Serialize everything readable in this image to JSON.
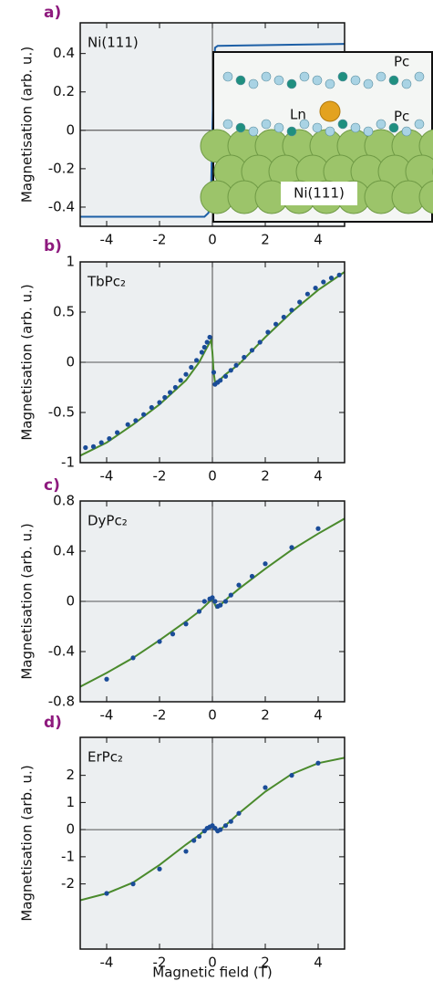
{
  "chart_data": [
    {
      "type": "line",
      "label": "a)",
      "annotation": "Ni(111)",
      "ylabel": "Magnetisation (arb. u.)",
      "xlim": [
        -5,
        5
      ],
      "xticks": [
        -4,
        -2,
        0,
        2,
        4
      ],
      "ylim": [
        -0.5,
        0.56
      ],
      "yticks": [
        -0.4,
        -0.2,
        0,
        0.2,
        0.4
      ],
      "line": {
        "color": "#1d5fa6",
        "x": [
          -5,
          -0.3,
          -0.15,
          -0.05,
          0,
          0.05,
          0.1,
          0.2,
          5
        ],
        "values": [
          -0.45,
          -0.45,
          -0.43,
          -0.3,
          0,
          0.3,
          0.43,
          0.44,
          0.45
        ]
      },
      "inset_labels": [
        "Pc",
        "Ln",
        "Pc",
        "Ni(111)"
      ]
    },
    {
      "type": "line",
      "label": "b)",
      "annotation": "TbPc₂",
      "ylabel": "Magnetisation (arb. u.)",
      "xlim": [
        -5,
        5
      ],
      "xticks": [
        -4,
        -2,
        0,
        2,
        4
      ],
      "ylim": [
        -1,
        1
      ],
      "yticks": [
        -1,
        -0.5,
        0,
        0.5,
        1
      ],
      "line": {
        "color": "#4a8a2c",
        "x": [
          -5,
          -4,
          -3,
          -2,
          -1,
          -0.5,
          -0.2,
          -0.05,
          0,
          0.05,
          0.1,
          0.3,
          0.5,
          1,
          2,
          3,
          4,
          5
        ],
        "values": [
          -0.93,
          -0.8,
          -0.62,
          -0.42,
          -0.18,
          0.0,
          0.15,
          0.22,
          0.1,
          -0.1,
          -0.2,
          -0.17,
          -0.12,
          -0.02,
          0.25,
          0.5,
          0.72,
          0.9
        ]
      },
      "points": {
        "color": "#1a4c98",
        "x": [
          -4.8,
          -4.5,
          -4.2,
          -3.9,
          -3.6,
          -3.2,
          -2.9,
          -2.6,
          -2.3,
          -2,
          -1.8,
          -1.6,
          -1.4,
          -1.2,
          -1,
          -0.8,
          -0.6,
          -0.4,
          -0.3,
          -0.2,
          -0.1,
          0.05,
          0.1,
          0.2,
          0.3,
          0.5,
          0.7,
          0.9,
          1.2,
          1.5,
          1.8,
          2.1,
          2.4,
          2.7,
          3,
          3.3,
          3.6,
          3.9,
          4.2,
          4.5,
          4.8
        ],
        "values": [
          -0.85,
          -0.84,
          -0.8,
          -0.76,
          -0.7,
          -0.62,
          -0.58,
          -0.52,
          -0.45,
          -0.4,
          -0.35,
          -0.3,
          -0.25,
          -0.18,
          -0.12,
          -0.05,
          0.02,
          0.1,
          0.15,
          0.2,
          0.25,
          -0.1,
          -0.22,
          -0.2,
          -0.18,
          -0.14,
          -0.08,
          -0.03,
          0.05,
          0.12,
          0.2,
          0.3,
          0.38,
          0.45,
          0.52,
          0.6,
          0.68,
          0.74,
          0.8,
          0.84,
          0.87
        ]
      }
    },
    {
      "type": "line",
      "label": "c)",
      "annotation": "DyPc₂",
      "ylabel": "Magnetisation (arb. u.)",
      "xlim": [
        -5,
        5
      ],
      "xticks": [
        -4,
        -2,
        0,
        2,
        4
      ],
      "ylim": [
        -0.8,
        0.8
      ],
      "yticks": [
        -0.8,
        -0.4,
        0,
        0.4,
        0.8
      ],
      "line": {
        "color": "#4a8a2c",
        "x": [
          -5,
          -4,
          -3,
          -2,
          -1,
          -0.5,
          -0.2,
          0,
          0.15,
          0.3,
          0.6,
          1,
          2,
          3,
          4,
          5
        ],
        "values": [
          -0.68,
          -0.57,
          -0.45,
          -0.31,
          -0.16,
          -0.08,
          -0.02,
          0.02,
          -0.05,
          -0.03,
          0.03,
          0.1,
          0.26,
          0.41,
          0.54,
          0.66
        ]
      },
      "points": {
        "color": "#1a4c98",
        "x": [
          -4,
          -3,
          -2,
          -1.5,
          -1,
          -0.5,
          -0.3,
          -0.1,
          0,
          0.1,
          0.2,
          0.3,
          0.5,
          0.7,
          1,
          1.5,
          2,
          3,
          4
        ],
        "values": [
          -0.62,
          -0.45,
          -0.32,
          -0.26,
          -0.18,
          -0.08,
          0,
          0.02,
          0.03,
          0.0,
          -0.04,
          -0.03,
          0.0,
          0.05,
          0.13,
          0.2,
          0.3,
          0.43,
          0.58
        ]
      }
    },
    {
      "type": "line",
      "label": "d)",
      "annotation": "ErPc₂",
      "ylabel": "Magnetisation (arb. u.)",
      "xlabel": "Magnetic field (T)",
      "xlim": [
        -5,
        5
      ],
      "xticks": [
        -4,
        -2,
        0,
        2,
        4
      ],
      "ylim": [
        -4.4,
        3.4
      ],
      "yticks": [
        -2,
        -1,
        0,
        1,
        2
      ],
      "line": {
        "color": "#4a8a2c",
        "x": [
          -5,
          -4,
          -3,
          -2,
          -1,
          -0.5,
          -0.2,
          0,
          0.15,
          0.3,
          0.6,
          1,
          2,
          3,
          4,
          5
        ],
        "values": [
          -2.6,
          -2.35,
          -1.95,
          -1.3,
          -0.55,
          -0.2,
          0.05,
          0.15,
          -0.05,
          0.0,
          0.25,
          0.6,
          1.4,
          2.05,
          2.45,
          2.65
        ]
      },
      "points": {
        "color": "#1a4c98",
        "x": [
          -4,
          -3,
          -2,
          -1,
          -0.7,
          -0.5,
          -0.3,
          -0.2,
          -0.1,
          0,
          0.1,
          0.2,
          0.3,
          0.5,
          0.7,
          1,
          2,
          3,
          4
        ],
        "values": [
          -2.35,
          -2.0,
          -1.45,
          -0.8,
          -0.4,
          -0.25,
          -0.05,
          0.05,
          0.1,
          0.15,
          0.05,
          -0.05,
          0.0,
          0.15,
          0.3,
          0.6,
          1.55,
          2.0,
          2.45
        ]
      }
    }
  ]
}
